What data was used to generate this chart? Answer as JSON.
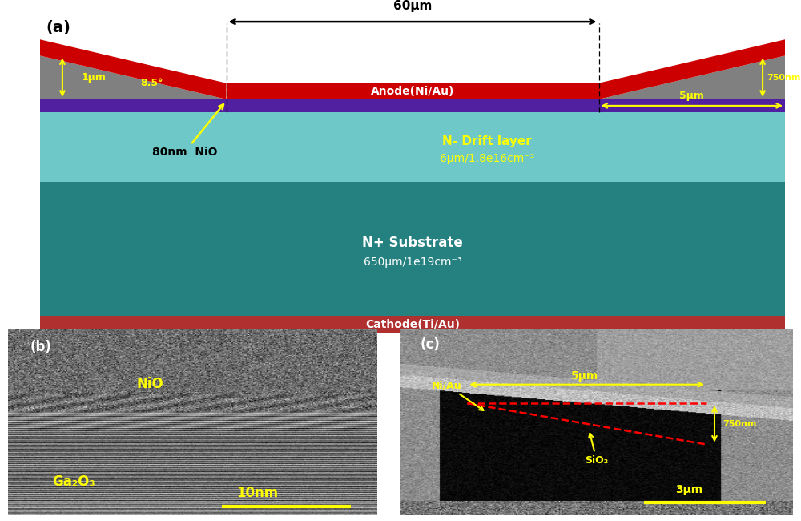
{
  "fig_width": 10.0,
  "fig_height": 6.5,
  "dpi": 100,
  "bg_color": "#ffffff",
  "panel_a": {
    "label": "(a)",
    "gray_color": "#808080",
    "purple_color": "#5020a0",
    "drift_color": "#6ec8c8",
    "substrate_color": "#258080",
    "cathode_color": "#b03030",
    "anode_color": "#cc0000",
    "anode_label": "Anode(Ni/Au)",
    "cathode_label": "Cathode(Ti/Au)",
    "drift_label": "N- Drift layer",
    "drift_sub": "6μm/1.8e16cm⁻³",
    "substrate_label": "N+ Substrate",
    "substrate_sub": "650μm/1e19cm⁻³",
    "nio_label": "80nm  NiO",
    "dim_60um": "60μm",
    "dim_1um": "1μm",
    "dim_5um": "5μm",
    "dim_750nm": "750nm",
    "dim_angle": "8.5°"
  },
  "panel_b": {
    "label": "(b)",
    "nio_label": "NiO",
    "ga2o3_label": "Ga₂O₃",
    "scalebar_label": "10nm",
    "label_color": "#ffff00",
    "scalebar_color": "#ffff00"
  },
  "panel_c": {
    "label": "(c)",
    "niau_label": "Ni/Au",
    "sio2_label": "SiO₂",
    "dim_750nm": "750nm",
    "dim_5um": "5μm",
    "scalebar_label": "3μm",
    "label_color": "#ffff00",
    "arrow_color": "#ffff00",
    "dashed_color": "#ff0000",
    "scalebar_color": "#ffff00"
  }
}
